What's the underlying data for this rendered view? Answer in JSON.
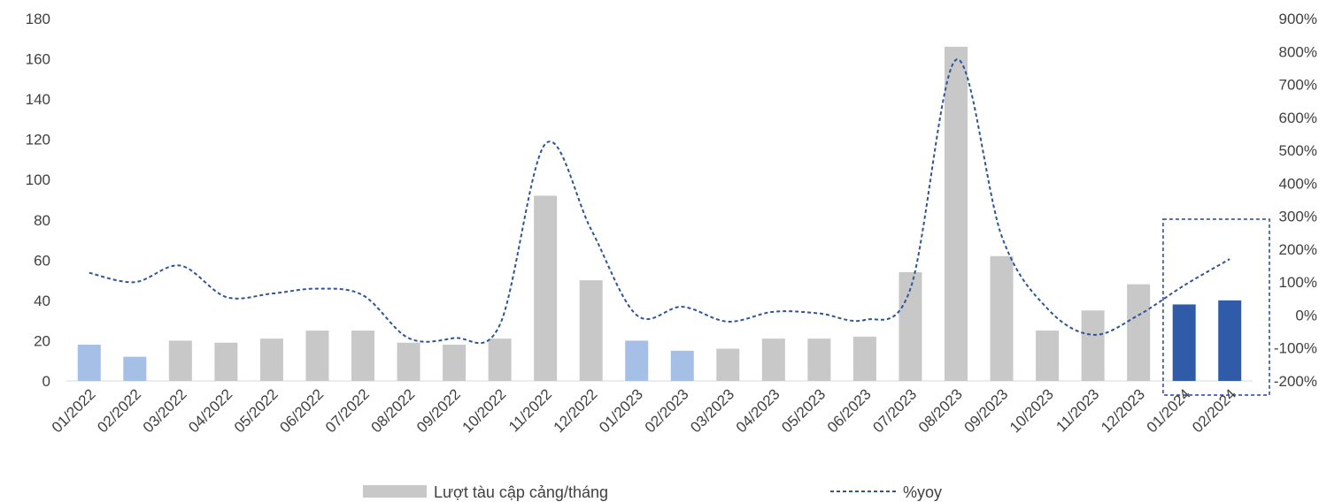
{
  "chart_data": {
    "type": "bar",
    "categories": [
      "01/2022",
      "02/2022",
      "03/2022",
      "04/2022",
      "05/2022",
      "06/2022",
      "07/2022",
      "08/2022",
      "09/2022",
      "10/2022",
      "11/2022",
      "12/2022",
      "01/2023",
      "02/2023",
      "03/2023",
      "04/2023",
      "05/2023",
      "06/2023",
      "07/2023",
      "08/2023",
      "09/2023",
      "10/2023",
      "11/2023",
      "12/2023",
      "01/2024",
      "02/2024"
    ],
    "series": [
      {
        "name": "Lượt tàu cập cảng/tháng",
        "type": "bar",
        "axis": "left",
        "values": [
          18,
          12,
          20,
          19,
          21,
          25,
          25,
          19,
          18,
          21,
          92,
          50,
          20,
          15,
          16,
          21,
          21,
          22,
          54,
          166,
          62,
          25,
          35,
          48,
          38,
          40
        ],
        "color": "#c8c8c8",
        "highlight_colors": {
          "0": "#a6bfe6",
          "1": "#a6bfe6",
          "12": "#a6bfe6",
          "13": "#a6bfe6",
          "24": "#2f5ba8",
          "25": "#2f5ba8"
        }
      },
      {
        "name": "%yoy",
        "type": "line",
        "style": "dashed",
        "axis": "right",
        "values": [
          128,
          100,
          150,
          55,
          65,
          80,
          60,
          -70,
          -70,
          -30,
          520,
          260,
          0,
          25,
          -20,
          10,
          5,
          -15,
          80,
          775,
          240,
          20,
          -60,
          0,
          90,
          170
        ],
        "color": "#2f5597"
      }
    ],
    "y_left": {
      "min": 0,
      "max": 180,
      "ticks": [
        "0",
        "20",
        "40",
        "60",
        "80",
        "100",
        "120",
        "140",
        "160",
        "180"
      ]
    },
    "y_right": {
      "min": -200,
      "max": 900,
      "ticks": [
        "-200%",
        "-100%",
        "0%",
        "100%",
        "200%",
        "300%",
        "400%",
        "500%",
        "600%",
        "700%",
        "800%",
        "900%"
      ]
    },
    "highlight_box": {
      "from_index": 24,
      "to_index": 25,
      "style": "dashed",
      "color": "#1f3fbf"
    },
    "legend": {
      "position": "bottom"
    },
    "grid": false
  }
}
